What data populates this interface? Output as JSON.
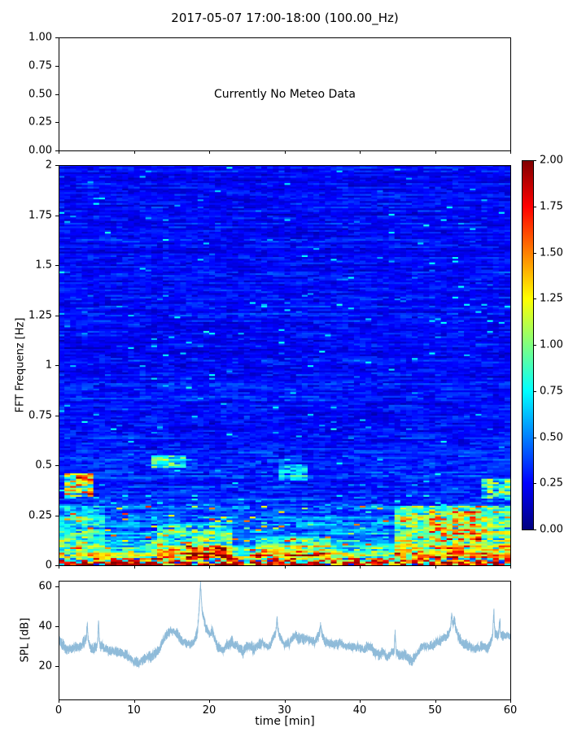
{
  "figure": {
    "title": "2017-05-07 17:00-18:00 (100.00_Hz)",
    "background": "#ffffff",
    "text_color": "#000000"
  },
  "meteo_panel": {
    "message": "Currently No Meteo Data",
    "ylim": [
      0,
      1
    ],
    "yticks": [
      {
        "label": "1.00",
        "v": 1.0
      },
      {
        "label": "0.75",
        "v": 0.75
      },
      {
        "label": "0.50",
        "v": 0.5
      },
      {
        "label": "0.25",
        "v": 0.25
      },
      {
        "label": "0.00",
        "v": 0.0
      }
    ],
    "xtick_values": [
      0,
      10,
      20,
      30,
      40,
      50,
      60
    ]
  },
  "spectrogram_panel": {
    "ylabel": "FFT Frequenz [Hz]",
    "ylim": [
      0,
      2
    ],
    "yticks": [
      {
        "label": "2",
        "v": 2.0
      },
      {
        "label": "1.75",
        "v": 1.75
      },
      {
        "label": "1.5",
        "v": 1.5
      },
      {
        "label": "1.25",
        "v": 1.25
      },
      {
        "label": "1",
        "v": 1.0
      },
      {
        "label": "0.75",
        "v": 0.75
      },
      {
        "label": "0.5",
        "v": 0.5
      },
      {
        "label": "0.25",
        "v": 0.25
      },
      {
        "label": "0",
        "v": 0.0
      }
    ],
    "xtick_values": [
      0,
      10,
      20,
      30,
      40,
      50,
      60
    ]
  },
  "colorbar": {
    "colormap": "jet",
    "vmin": 0.0,
    "vmax": 2.0,
    "ticks": [
      {
        "label": "2.00",
        "v": 2.0
      },
      {
        "label": "1.75",
        "v": 1.75
      },
      {
        "label": "1.50",
        "v": 1.5
      },
      {
        "label": "1.25",
        "v": 1.25
      },
      {
        "label": "1.00",
        "v": 1.0
      },
      {
        "label": "0.75",
        "v": 0.75
      },
      {
        "label": "0.50",
        "v": 0.5
      },
      {
        "label": "0.25",
        "v": 0.25
      },
      {
        "label": "0.00",
        "v": 0.0
      }
    ]
  },
  "spl_panel": {
    "ylabel": "SPL [dB]",
    "xlabel": "time [min]",
    "ylim": [
      3,
      63
    ],
    "xlim": [
      0,
      60
    ],
    "yticks": [
      {
        "label": "60",
        "v": 60
      },
      {
        "label": "40",
        "v": 40
      },
      {
        "label": "20",
        "v": 20
      }
    ],
    "xticks": [
      {
        "label": "0",
        "v": 0
      },
      {
        "label": "10",
        "v": 10
      },
      {
        "label": "20",
        "v": 20
      },
      {
        "label": "30",
        "v": 30
      },
      {
        "label": "40",
        "v": 40
      },
      {
        "label": "50",
        "v": 50
      },
      {
        "label": "60",
        "v": 60
      }
    ],
    "line_color": "#1f77b4"
  },
  "chart_data": [
    {
      "type": "heatmap",
      "title": "2017-05-07 17:00-18:00 (100.00_Hz)",
      "ylabel": "FFT Frequenz [Hz]",
      "xlabel": "time [min]",
      "xlim": [
        0,
        60
      ],
      "ylim": [
        0,
        2
      ],
      "colormap": "jet",
      "vmin": 0.0,
      "vmax": 2.0,
      "grid": false,
      "description": "Noisy ambient FFT spectrogram: mostly blue (0.1-0.4) above 0.5 Hz, energy rising toward low frequencies, bright red/orange band below 0.05 Hz, scattered cyan/green/yellow streaks at low frequency.",
      "freq_profile": [
        [
          0.0,
          1.8
        ],
        [
          0.015,
          1.5
        ],
        [
          0.03,
          1.15
        ],
        [
          0.05,
          0.95
        ],
        [
          0.08,
          0.72
        ],
        [
          0.12,
          0.55
        ],
        [
          0.18,
          0.45
        ],
        [
          0.25,
          0.36
        ],
        [
          0.35,
          0.3
        ],
        [
          0.5,
          0.27
        ],
        [
          0.8,
          0.24
        ],
        [
          1.2,
          0.23
        ],
        [
          2.0,
          0.22
        ]
      ],
      "features": [
        {
          "t": [
            0.5,
            4.5
          ],
          "f": [
            0.34,
            0.46
          ],
          "boost": 0.85
        },
        {
          "t": [
            0,
            6
          ],
          "f": [
            0.08,
            0.3
          ],
          "boost": 0.25
        },
        {
          "t": [
            12.5,
            17
          ],
          "f": [
            0.49,
            0.55
          ],
          "boost": 0.5
        },
        {
          "t": [
            13,
            23
          ],
          "f": [
            0,
            0.2
          ],
          "boost": 0.35
        },
        {
          "t": [
            17,
            22
          ],
          "f": [
            0,
            0.1
          ],
          "boost": 0.3
        },
        {
          "t": [
            26,
            36
          ],
          "f": [
            0,
            0.14
          ],
          "boost": 0.3
        },
        {
          "t": [
            29.5,
            33
          ],
          "f": [
            0.42,
            0.5
          ],
          "boost": 0.3
        },
        {
          "t": [
            45,
            60
          ],
          "f": [
            0,
            0.3
          ],
          "boost": 0.45
        },
        {
          "t": [
            49,
            56
          ],
          "f": [
            0.13,
            0.27
          ],
          "boost": 0.3
        },
        {
          "t": [
            56,
            60
          ],
          "f": [
            0.33,
            0.43
          ],
          "boost": 0.55
        }
      ]
    },
    {
      "type": "line",
      "name": "SPL",
      "ylabel": "SPL [dB]",
      "xlabel": "time [min]",
      "xlim": [
        0,
        60
      ],
      "ylim": [
        3,
        63
      ],
      "xticks": [
        0,
        10,
        20,
        30,
        40,
        50,
        60
      ],
      "yticks": [
        20,
        40,
        60
      ],
      "color": "#1f77b4",
      "noise_band_db": 4,
      "envelope": [
        [
          0,
          33
        ],
        [
          0.5,
          31
        ],
        [
          1,
          29
        ],
        [
          1.5,
          28.5
        ],
        [
          2,
          29
        ],
        [
          2.5,
          30
        ],
        [
          3,
          31
        ],
        [
          3.5,
          34
        ],
        [
          3.8,
          37
        ],
        [
          4.2,
          33
        ],
        [
          4.6,
          31
        ],
        [
          5,
          30
        ],
        [
          5.3,
          32
        ],
        [
          5.7,
          30
        ],
        [
          6.5,
          28.5
        ],
        [
          7.5,
          27
        ],
        [
          8.5,
          25.5
        ],
        [
          9.5,
          23.5
        ],
        [
          10,
          22.5
        ],
        [
          10.5,
          22
        ],
        [
          11,
          22.5
        ],
        [
          11.5,
          22
        ],
        [
          12,
          23
        ],
        [
          12.5,
          24
        ],
        [
          13,
          26
        ],
        [
          13.5,
          30
        ],
        [
          14,
          34
        ],
        [
          14.5,
          36
        ],
        [
          15,
          37
        ],
        [
          15.7,
          36.5
        ],
        [
          16.3,
          34
        ],
        [
          17,
          31
        ],
        [
          17.5,
          32
        ],
        [
          18,
          33
        ],
        [
          18.4,
          36
        ],
        [
          18.6,
          45
        ],
        [
          18.85,
          57
        ],
        [
          19.1,
          46
        ],
        [
          19.5,
          40
        ],
        [
          20,
          36
        ],
        [
          20.4,
          37
        ],
        [
          20.8,
          33
        ],
        [
          21.3,
          29
        ],
        [
          21.7,
          27.5
        ],
        [
          22,
          29
        ],
        [
          22.5,
          32
        ],
        [
          23,
          32.5
        ],
        [
          23.5,
          31
        ],
        [
          24,
          29
        ],
        [
          24.5,
          27.5
        ],
        [
          25,
          29
        ],
        [
          25.5,
          30
        ],
        [
          26,
          29.5
        ],
        [
          26.5,
          31
        ],
        [
          27,
          33
        ],
        [
          27.5,
          32
        ],
        [
          28,
          31
        ],
        [
          28.5,
          34
        ],
        [
          29,
          40
        ],
        [
          29.4,
          36
        ],
        [
          30,
          32
        ],
        [
          30.5,
          33
        ],
        [
          31,
          34.5
        ],
        [
          31.5,
          35
        ],
        [
          32,
          33.5
        ],
        [
          32.5,
          32.5
        ],
        [
          33,
          33.5
        ],
        [
          33.5,
          32.5
        ],
        [
          34,
          32
        ],
        [
          34.5,
          34
        ],
        [
          34.8,
          37
        ],
        [
          35.2,
          34
        ],
        [
          36,
          30.5
        ],
        [
          36.5,
          30
        ],
        [
          37,
          30.5
        ],
        [
          38,
          29
        ],
        [
          39,
          30
        ],
        [
          40,
          29
        ],
        [
          40.5,
          28.5
        ],
        [
          41,
          29
        ],
        [
          41.5,
          28
        ],
        [
          42,
          26.5
        ],
        [
          42.5,
          26.5
        ],
        [
          43,
          27
        ],
        [
          43.5,
          26.5
        ],
        [
          44,
          27.5
        ],
        [
          44.5,
          28.5
        ],
        [
          45,
          27.5
        ],
        [
          45.5,
          27
        ],
        [
          46,
          26
        ],
        [
          46.5,
          25
        ],
        [
          47,
          24
        ],
        [
          47.5,
          26
        ],
        [
          48,
          28.5
        ],
        [
          48.5,
          31
        ],
        [
          49,
          30
        ],
        [
          49.5,
          30.5
        ],
        [
          50,
          32.5
        ],
        [
          50.5,
          34
        ],
        [
          51,
          35
        ],
        [
          51.5,
          36
        ],
        [
          52,
          38
        ],
        [
          52.3,
          42
        ],
        [
          52.6,
          40
        ],
        [
          53,
          36.5
        ],
        [
          53.5,
          32.5
        ],
        [
          54,
          30.5
        ],
        [
          54.5,
          29.5
        ],
        [
          55,
          28.5
        ],
        [
          55.5,
          28
        ],
        [
          56,
          27.5
        ],
        [
          56.5,
          28
        ],
        [
          57,
          27.5
        ],
        [
          57.4,
          31
        ],
        [
          57.8,
          36
        ],
        [
          58.2,
          37
        ],
        [
          58.6,
          38
        ],
        [
          59,
          36.5
        ],
        [
          59.5,
          37
        ],
        [
          60,
          34.5
        ]
      ],
      "spikes": [
        [
          3.8,
          43
        ],
        [
          5.3,
          42.5
        ],
        [
          18.85,
          61
        ],
        [
          29.0,
          43.5
        ],
        [
          34.8,
          40
        ],
        [
          44.7,
          36.5
        ],
        [
          52.2,
          45.5
        ],
        [
          52.6,
          44
        ],
        [
          57.8,
          47
        ],
        [
          58.6,
          44
        ]
      ]
    },
    {
      "type": "text_panel",
      "message": "Currently No Meteo Data",
      "ylim": [
        0,
        1
      ],
      "yticks": [
        0,
        0.25,
        0.5,
        0.75,
        1.0
      ]
    }
  ]
}
